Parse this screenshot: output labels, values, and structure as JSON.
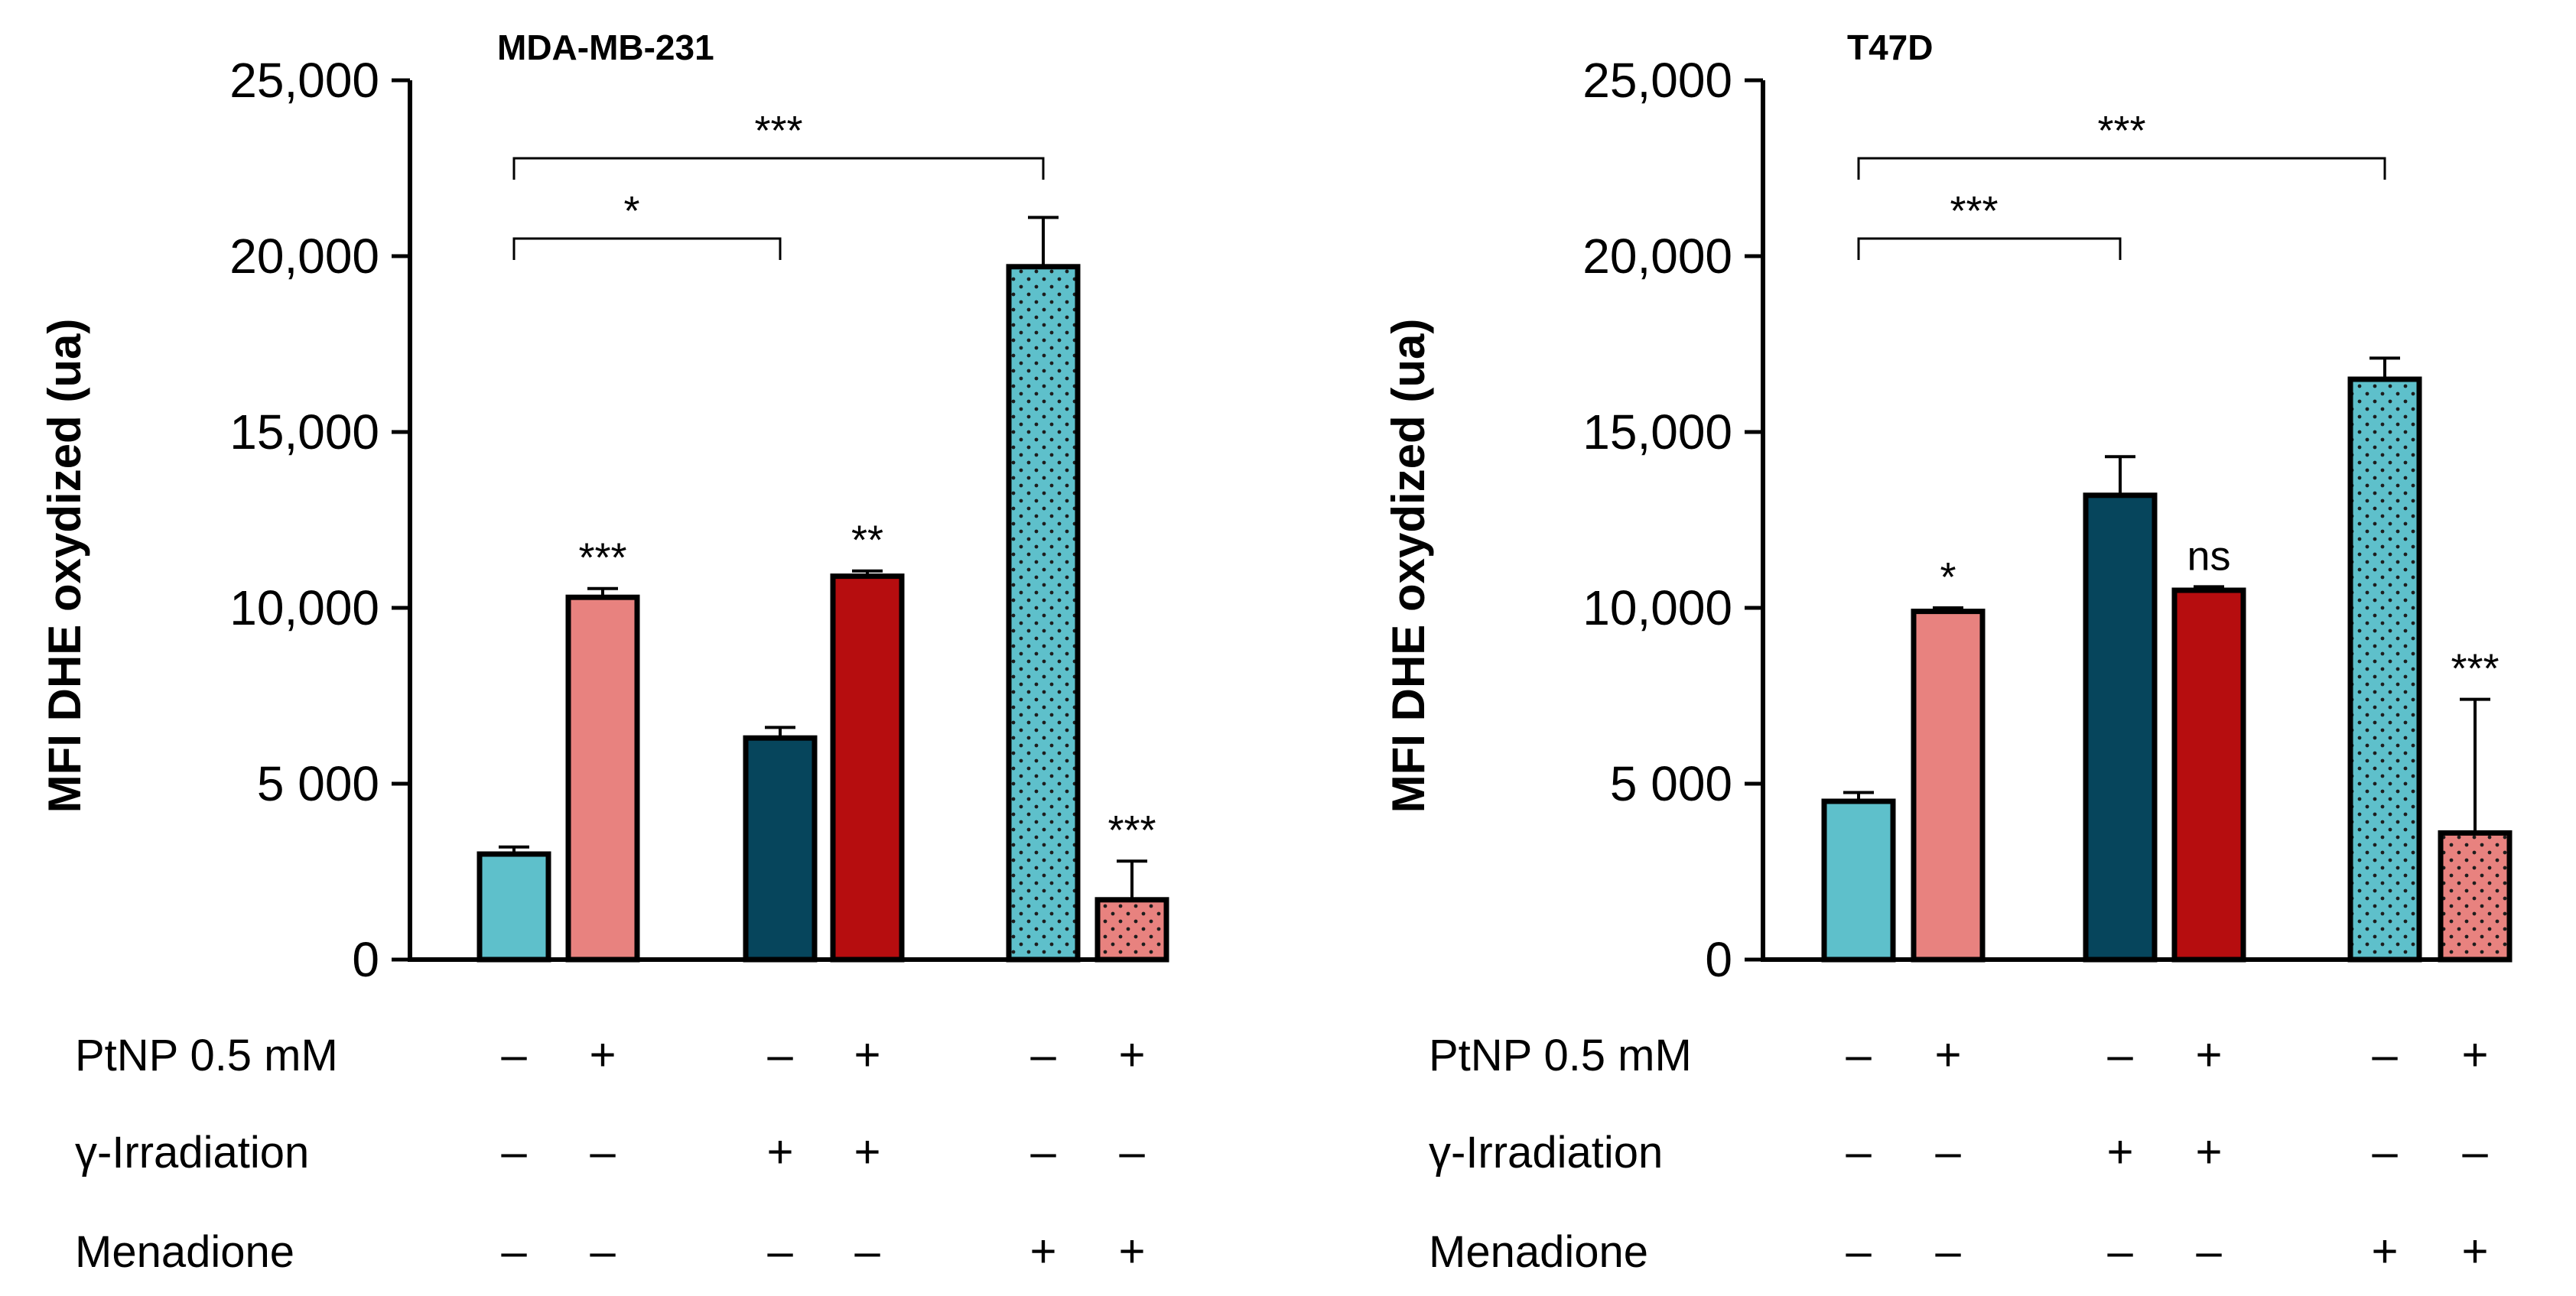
{
  "figure": {
    "panels": [
      "MDA-MB-231",
      "T47D"
    ],
    "ylabel": "MFI DHE oxydized (ua)",
    "condition_rows": [
      "PtNP 0.5 mM",
      "γ-Irradiation",
      "Menadione"
    ]
  },
  "colors": {
    "light_blue": "#5ec0cb",
    "salmon": "#e8827f",
    "dark_teal": "#06455c",
    "red": "#b60d0f",
    "outline": "#000000"
  },
  "chart_data": [
    {
      "type": "bar",
      "title": "MDA-MB-231",
      "ylabel": "MFI DHE oxydized (ua)",
      "ylim": [
        0,
        25000
      ],
      "yticks": [
        0,
        5000,
        10000,
        15000,
        20000,
        25000
      ],
      "ytick_labels": [
        "0",
        "5 000",
        "10,000",
        "15,000",
        "20,000",
        "25,000"
      ],
      "grid": false,
      "bars": [
        {
          "value": 3000,
          "error": 200,
          "color": "light_blue",
          "pattern": "solid",
          "sig": ""
        },
        {
          "value": 10300,
          "error": 250,
          "color": "salmon",
          "pattern": "solid",
          "sig": "***"
        },
        {
          "value": 6300,
          "error": 300,
          "color": "dark_teal",
          "pattern": "solid",
          "sig": ""
        },
        {
          "value": 10900,
          "error": 150,
          "color": "red",
          "pattern": "solid",
          "sig": "**"
        },
        {
          "value": 19700,
          "error": 1400,
          "color": "light_blue",
          "pattern": "dotted",
          "sig": ""
        },
        {
          "value": 1700,
          "error": 1100,
          "color": "salmon",
          "pattern": "dotted",
          "sig": "***"
        }
      ],
      "brackets": [
        {
          "from": 0,
          "to": 2,
          "label": "*",
          "level": 1
        },
        {
          "from": 0,
          "to": 4,
          "label": "***",
          "level": 2
        }
      ],
      "conditions": {
        "PtNP 0.5 mM": [
          "–",
          "+",
          "–",
          "+",
          "–",
          "+"
        ],
        "γ-Irradiation": [
          "–",
          "–",
          "+",
          "+",
          "–",
          "–"
        ],
        "Menadione": [
          "–",
          "–",
          "–",
          "–",
          "+",
          "+"
        ]
      }
    },
    {
      "type": "bar",
      "title": "T47D",
      "ylabel": "MFI DHE oxydized (ua)",
      "ylim": [
        0,
        25000
      ],
      "yticks": [
        0,
        5000,
        10000,
        15000,
        20000,
        25000
      ],
      "ytick_labels": [
        "0",
        "5 000",
        "10,000",
        "15,000",
        "20,000",
        "25,000"
      ],
      "grid": false,
      "bars": [
        {
          "value": 4500,
          "error": 250,
          "color": "light_blue",
          "pattern": "solid",
          "sig": ""
        },
        {
          "value": 9900,
          "error": 100,
          "color": "salmon",
          "pattern": "solid",
          "sig": "*"
        },
        {
          "value": 13200,
          "error": 1100,
          "color": "dark_teal",
          "pattern": "solid",
          "sig": ""
        },
        {
          "value": 10500,
          "error": 100,
          "color": "red",
          "pattern": "solid",
          "sig": "ns"
        },
        {
          "value": 16500,
          "error": 600,
          "color": "light_blue",
          "pattern": "dotted",
          "sig": ""
        },
        {
          "value": 3600,
          "error": 3800,
          "color": "salmon",
          "pattern": "dotted",
          "sig": "***"
        }
      ],
      "brackets": [
        {
          "from": 0,
          "to": 2,
          "label": "***",
          "level": 1
        },
        {
          "from": 0,
          "to": 4,
          "label": "***",
          "level": 2
        }
      ],
      "conditions": {
        "PtNP 0.5 mM": [
          "–",
          "+",
          "–",
          "+",
          "–",
          "+"
        ],
        "γ-Irradiation": [
          "–",
          "–",
          "+",
          "+",
          "–",
          "–"
        ],
        "Menadione": [
          "–",
          "–",
          "–",
          "–",
          "+",
          "+"
        ]
      }
    }
  ]
}
